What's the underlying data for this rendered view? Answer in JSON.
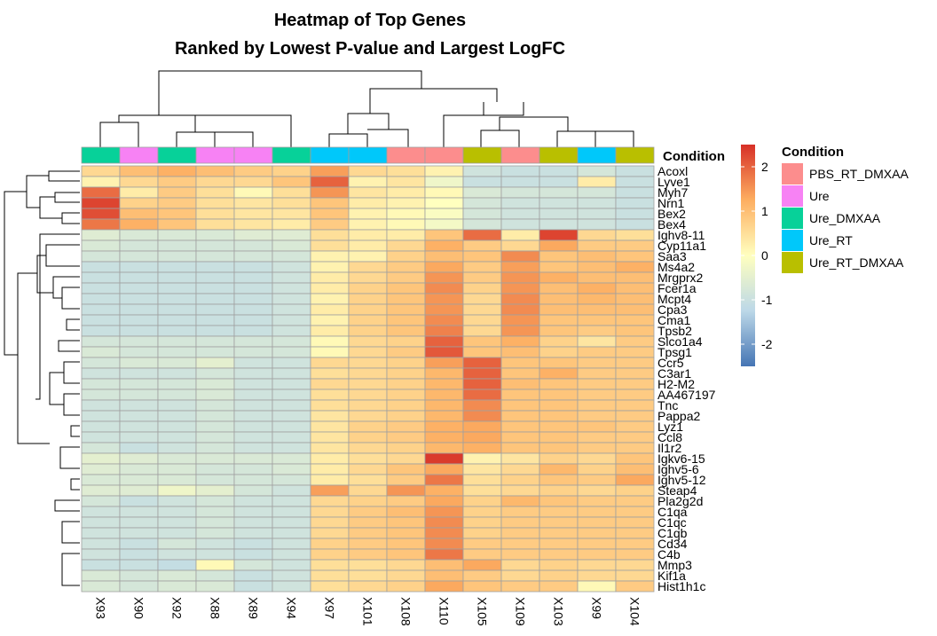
{
  "chart_data": {
    "type": "heatmap",
    "title": "Heatmap of Top Genes",
    "subtitle": "Ranked by Lowest P-value and Largest LogFC",
    "columns": [
      "X93",
      "X90",
      "X92",
      "X88",
      "X89",
      "X94",
      "X97",
      "X101",
      "X108",
      "X110",
      "X105",
      "X109",
      "X103",
      "X99",
      "X104"
    ],
    "column_condition": [
      "Ure_DMXAA",
      "Ure",
      "Ure_DMXAA",
      "Ure",
      "Ure",
      "Ure_DMXAA",
      "Ure_RT",
      "Ure_RT",
      "PBS_RT_DMXAA",
      "PBS_RT_DMXAA",
      "Ure_RT_DMXAA",
      "PBS_RT_DMXAA",
      "Ure_RT_DMXAA",
      "Ure_RT",
      "Ure_RT_DMXAA"
    ],
    "rows": [
      "Acoxl",
      "Lyve1",
      "Myh7",
      "Nrn1",
      "Bex2",
      "Bex4",
      "Ighv8-11",
      "Cyp11a1",
      "Saa3",
      "Ms4a2",
      "Mrgprx2",
      "Fcer1a",
      "Mcpt4",
      "Cpa3",
      "Cma1",
      "Tpsb2",
      "Slco1a4",
      "Tpsg1",
      "Ccr5",
      "C3ar1",
      "H2-M2",
      "AA467197",
      "Tnc",
      "Pappa2",
      "Lyz1",
      "Ccl8",
      "Il1r2",
      "Igkv6-15",
      "Ighv5-6",
      "Ighv5-12",
      "Steap4",
      "Pla2g2d",
      "C1qa",
      "C1qc",
      "C1qb",
      "Cd34",
      "C4b",
      "Mmp3",
      "Kif1a",
      "Hist1h1c"
    ],
    "values": [
      [
        0.6,
        1.0,
        1.2,
        1.0,
        0.8,
        0.7,
        1.4,
        0.6,
        0.5,
        0.2,
        -0.9,
        -1.0,
        -1.0,
        -0.8,
        -1.0
      ],
      [
        0.2,
        0.6,
        0.8,
        0.6,
        0.6,
        0.9,
        2.0,
        0.2,
        0.4,
        -0.3,
        -1.0,
        -1.0,
        -1.0,
        0.3,
        -1.0
      ],
      [
        1.9,
        0.3,
        0.8,
        0.5,
        0.1,
        0.5,
        1.5,
        0.4,
        0.3,
        0.1,
        -0.7,
        -0.8,
        -0.8,
        -0.8,
        -1.0
      ],
      [
        2.3,
        0.7,
        0.8,
        0.5,
        0.4,
        0.5,
        0.9,
        0.3,
        0.2,
        0.0,
        -0.8,
        -0.9,
        -0.9,
        -0.9,
        -1.0
      ],
      [
        2.2,
        1.0,
        0.9,
        0.5,
        0.4,
        0.4,
        0.9,
        0.2,
        0.1,
        -0.1,
        -0.8,
        -0.9,
        -0.9,
        -0.9,
        -1.0
      ],
      [
        1.8,
        1.2,
        0.9,
        0.5,
        0.4,
        0.3,
        0.8,
        0.2,
        0.1,
        -0.2,
        -0.8,
        -0.9,
        -0.9,
        -0.9,
        -1.0
      ],
      [
        -0.6,
        -0.7,
        -0.7,
        -0.7,
        -0.6,
        -0.6,
        0.5,
        0.3,
        0.3,
        0.9,
        1.9,
        0.3,
        2.3,
        0.6,
        0.5
      ],
      [
        -0.7,
        -0.8,
        -0.8,
        -0.8,
        -0.8,
        -0.7,
        0.5,
        0.3,
        0.6,
        1.2,
        0.8,
        0.6,
        1.3,
        0.8,
        0.8
      ],
      [
        -0.8,
        -0.8,
        -0.8,
        -0.8,
        -0.8,
        -0.8,
        0.2,
        0.2,
        0.7,
        1.0,
        0.9,
        1.6,
        0.9,
        1.0,
        0.9
      ],
      [
        -1.0,
        -1.0,
        -1.0,
        -1.0,
        -1.0,
        -0.9,
        0.2,
        0.6,
        0.8,
        1.3,
        0.8,
        1.4,
        0.9,
        1.0,
        1.2
      ],
      [
        -1.0,
        -1.0,
        -1.0,
        -1.0,
        -1.0,
        -0.9,
        0.3,
        0.6,
        0.8,
        1.5,
        0.8,
        1.5,
        1.2,
        1.0,
        1.0
      ],
      [
        -1.0,
        -1.0,
        -1.0,
        -1.0,
        -1.0,
        -0.9,
        0.3,
        0.7,
        0.9,
        1.6,
        0.7,
        1.5,
        1.0,
        1.2,
        1.0
      ],
      [
        -1.0,
        -1.0,
        -1.0,
        -1.0,
        -1.0,
        -0.9,
        0.2,
        0.7,
        0.9,
        1.5,
        0.6,
        1.6,
        1.0,
        1.1,
        1.0
      ],
      [
        -1.0,
        -1.0,
        -1.0,
        -1.0,
        -1.0,
        -0.9,
        0.3,
        0.7,
        0.9,
        1.5,
        0.6,
        1.6,
        1.0,
        1.0,
        1.0
      ],
      [
        -1.0,
        -1.0,
        -1.0,
        -1.0,
        -1.0,
        -0.9,
        0.2,
        0.7,
        0.9,
        1.6,
        0.6,
        1.5,
        0.9,
        0.9,
        0.9
      ],
      [
        -1.0,
        -1.0,
        -1.0,
        -1.0,
        -1.0,
        -0.9,
        0.3,
        0.7,
        0.9,
        1.7,
        0.6,
        1.5,
        0.9,
        0.8,
        0.9
      ],
      [
        -0.8,
        -0.8,
        -0.8,
        -0.8,
        -0.8,
        -0.8,
        0.1,
        0.6,
        0.7,
        2.0,
        0.9,
        1.2,
        0.7,
        0.4,
        0.8
      ],
      [
        -0.7,
        -0.8,
        -0.8,
        -0.8,
        -0.8,
        -0.8,
        0.1,
        0.6,
        0.8,
        2.1,
        0.9,
        1.0,
        0.7,
        0.8,
        0.8
      ],
      [
        -0.8,
        -0.7,
        -0.7,
        -0.5,
        -0.9,
        -0.9,
        0.6,
        0.6,
        0.7,
        1.4,
        2.0,
        0.9,
        0.9,
        0.8,
        0.8
      ],
      [
        -0.9,
        -0.9,
        -0.9,
        -0.8,
        -0.9,
        -0.9,
        0.5,
        0.6,
        0.7,
        1.1,
        2.0,
        0.9,
        1.2,
        0.8,
        0.8
      ],
      [
        -0.8,
        -0.8,
        -0.8,
        -0.7,
        -0.9,
        -0.9,
        0.6,
        0.6,
        0.7,
        1.1,
        2.0,
        1.0,
        0.9,
        0.8,
        0.8
      ],
      [
        -0.8,
        -0.8,
        -0.8,
        -0.7,
        -0.9,
        -0.9,
        0.5,
        0.6,
        0.7,
        1.1,
        1.9,
        0.9,
        0.9,
        0.8,
        0.8
      ],
      [
        -0.9,
        -0.9,
        -0.9,
        -0.8,
        -0.9,
        -0.9,
        0.5,
        0.6,
        0.7,
        1.1,
        1.6,
        0.9,
        0.9,
        0.8,
        0.8
      ],
      [
        -0.9,
        -0.9,
        -0.9,
        -0.8,
        -0.9,
        -0.9,
        0.4,
        0.6,
        0.7,
        1.1,
        1.6,
        0.9,
        0.9,
        0.8,
        0.8
      ],
      [
        -0.9,
        -0.9,
        -0.9,
        -0.8,
        -0.9,
        -0.9,
        0.4,
        0.7,
        0.8,
        1.2,
        1.3,
        0.9,
        0.9,
        0.9,
        0.8
      ],
      [
        -0.9,
        -0.9,
        -0.9,
        -0.8,
        -0.9,
        -0.9,
        0.4,
        0.7,
        0.8,
        1.2,
        1.3,
        0.9,
        0.9,
        0.8,
        0.8
      ],
      [
        -0.8,
        -1.0,
        -0.9,
        -0.8,
        -0.9,
        -0.9,
        0.4,
        0.6,
        0.7,
        1.1,
        1.2,
        0.9,
        0.9,
        0.8,
        0.8
      ],
      [
        -0.5,
        -0.6,
        -0.7,
        -0.7,
        -0.7,
        -0.7,
        0.3,
        0.5,
        0.6,
        2.4,
        0.2,
        0.4,
        0.7,
        0.6,
        0.9
      ],
      [
        -0.6,
        -0.7,
        -0.7,
        -0.8,
        -0.8,
        -0.7,
        0.3,
        0.6,
        0.9,
        1.3,
        0.4,
        0.6,
        1.1,
        0.7,
        1.0
      ],
      [
        -0.7,
        -0.7,
        -0.7,
        -0.8,
        -0.8,
        -0.8,
        0.3,
        0.5,
        0.8,
        1.8,
        0.5,
        0.7,
        0.9,
        0.8,
        1.3
      ],
      [
        -0.6,
        -0.6,
        -0.3,
        -0.5,
        -0.8,
        -0.9,
        1.4,
        0.6,
        1.5,
        1.2,
        0.5,
        0.6,
        0.7,
        0.6,
        0.7
      ],
      [
        -0.8,
        -1.0,
        -0.9,
        -0.8,
        -0.9,
        -0.9,
        0.6,
        0.7,
        0.8,
        1.3,
        0.7,
        1.1,
        0.9,
        0.8,
        0.8
      ],
      [
        -0.9,
        -0.9,
        -0.9,
        -0.8,
        -0.9,
        -0.9,
        0.6,
        0.8,
        1.0,
        1.5,
        0.7,
        0.8,
        0.8,
        0.8,
        0.8
      ],
      [
        -0.9,
        -0.9,
        -0.9,
        -0.8,
        -0.9,
        -0.9,
        0.6,
        0.8,
        0.9,
        1.6,
        0.7,
        0.8,
        0.8,
        0.8,
        0.8
      ],
      [
        -0.9,
        -0.9,
        -0.9,
        -0.8,
        -0.9,
        -0.9,
        0.6,
        0.8,
        0.9,
        1.6,
        0.7,
        0.8,
        0.8,
        0.8,
        0.8
      ],
      [
        -0.9,
        -1.0,
        -0.8,
        -0.9,
        -1.0,
        -0.9,
        0.7,
        0.8,
        0.9,
        1.6,
        0.8,
        0.8,
        0.8,
        0.8,
        0.8
      ],
      [
        -0.9,
        -1.0,
        -0.9,
        -0.9,
        -1.0,
        -0.9,
        0.7,
        0.8,
        0.9,
        1.8,
        0.8,
        0.8,
        0.8,
        0.8,
        0.8
      ],
      [
        -1.0,
        -1.0,
        -1.1,
        0.1,
        -0.8,
        -0.9,
        0.5,
        0.5,
        0.6,
        1.0,
        1.3,
        0.6,
        0.7,
        0.6,
        0.6
      ],
      [
        -0.7,
        -0.8,
        -0.7,
        -0.8,
        -1.0,
        -0.9,
        0.5,
        0.5,
        0.6,
        1.0,
        0.8,
        0.6,
        0.7,
        0.6,
        0.6
      ],
      [
        -0.7,
        -0.8,
        -0.7,
        -0.7,
        -1.0,
        -0.9,
        0.5,
        0.6,
        0.7,
        1.3,
        0.9,
        0.8,
        0.8,
        0.1,
        0.8
      ]
    ],
    "color_scale": {
      "min": -2.5,
      "max": 2.5,
      "stops": [
        {
          "value": -2.5,
          "color": "#4575b4"
        },
        {
          "value": -1.25,
          "color": "#bcd8e8"
        },
        {
          "value": 0,
          "color": "#ffffbf"
        },
        {
          "value": 1.25,
          "color": "#fdae61"
        },
        {
          "value": 2.5,
          "color": "#d73027"
        }
      ],
      "ticks": [
        "2",
        "1",
        "0",
        "-1",
        "-2"
      ],
      "tick_values": [
        2,
        1,
        0,
        -1,
        -2
      ]
    },
    "annotation": {
      "name": "Condition",
      "levels": [
        {
          "name": "PBS_RT_DMXAA",
          "color": "#fc8d8d"
        },
        {
          "name": "Ure",
          "color": "#f782f4"
        },
        {
          "name": "Ure_DMXAA",
          "color": "#07d199"
        },
        {
          "name": "Ure_RT",
          "color": "#00c8fa"
        },
        {
          "name": "Ure_RT_DMXAA",
          "color": "#b9bf00"
        }
      ]
    }
  }
}
